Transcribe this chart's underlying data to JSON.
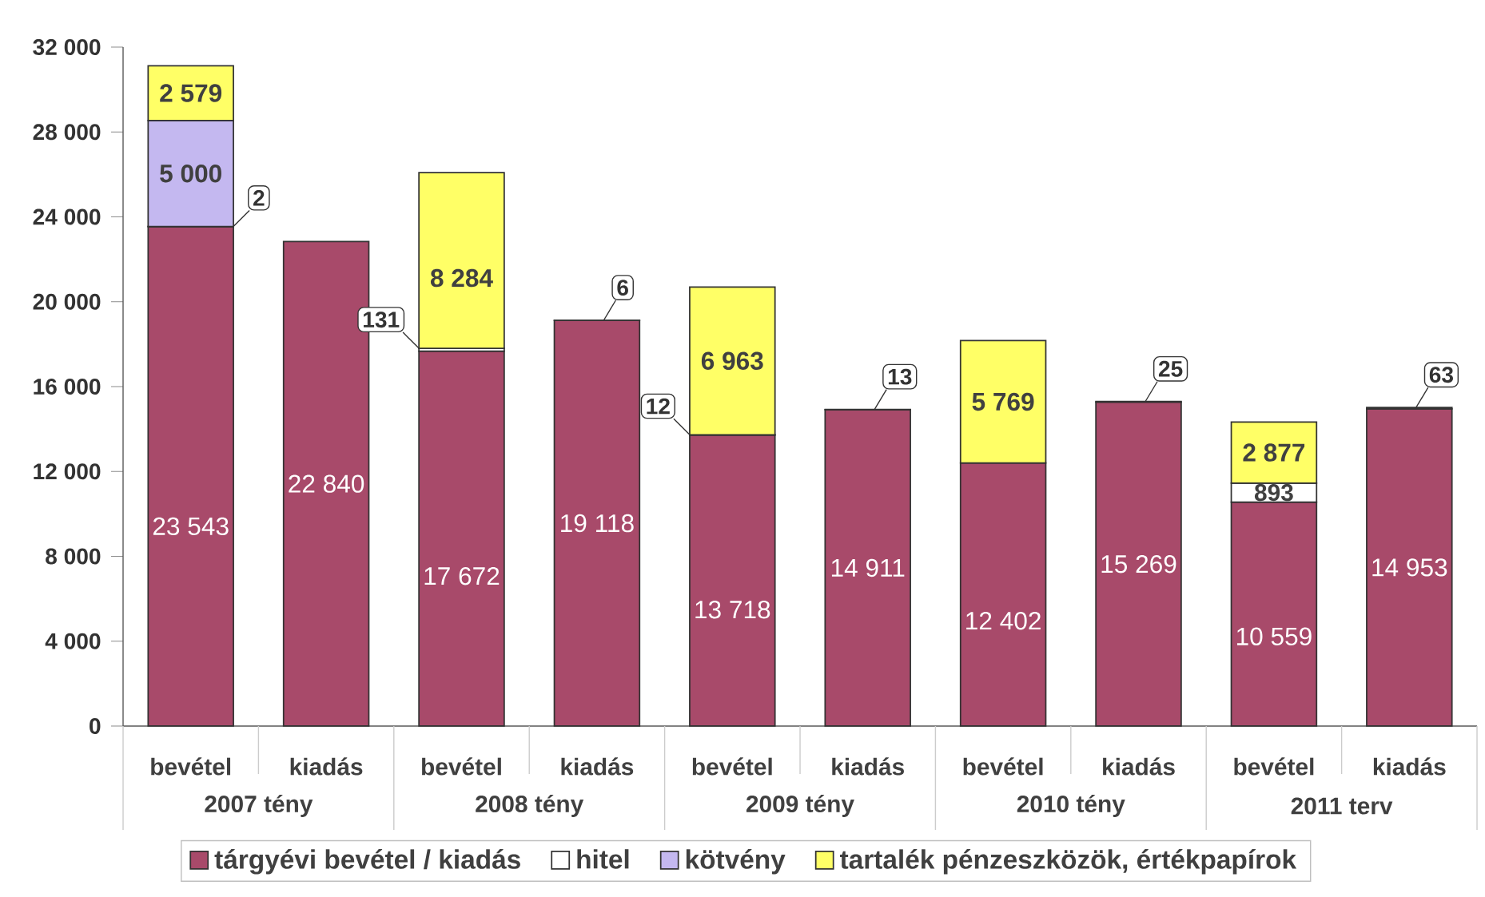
{
  "chart_data": {
    "type": "bar",
    "stacked": true,
    "legend": "bottom",
    "categories": [
      "bevétel",
      "kiadás",
      "bevétel",
      "kiadás",
      "bevétel",
      "kiadás",
      "bevétel",
      "kiadás",
      "bevétel",
      "kiadás"
    ],
    "annotations": [
      "2007 tény",
      "2008 tény",
      "2009 tény",
      "2010 tény",
      "2011 terv"
    ],
    "ylim": [
      0,
      32000
    ],
    "yticks": [
      0,
      {
        "value": 4000,
        "label": "4 000"
      },
      {
        "value": 8000,
        "label": "8 000"
      },
      {
        "value": 12000,
        "label": "12 000"
      },
      {
        "value": 16000,
        "label": "16 000"
      },
      {
        "value": 20000,
        "label": "20 000"
      },
      {
        "value": 24000,
        "label": "24 000"
      },
      {
        "value": 28000,
        "label": "28 000"
      },
      {
        "value": 32000,
        "label": "32 000"
      }
    ],
    "series": [
      {
        "name": "tárgyévi bevétel / kiadás",
        "color": "#a84a6a",
        "values": [
          23543,
          22840,
          17672,
          19118,
          13718,
          14911,
          12402,
          15269,
          10559,
          14953
        ],
        "value_labels": [
          "23 543",
          "22 840",
          "17 672",
          "19 118",
          "13 718",
          "14 911",
          "12 402",
          "15 269",
          "10 559",
          "14 953"
        ]
      },
      {
        "name": "hitel",
        "color": "#ffffff",
        "values": [
          2,
          null,
          131,
          6,
          12,
          13,
          null,
          25,
          893,
          63
        ],
        "value_labels": [
          "2",
          null,
          "131",
          "6",
          "12",
          "13",
          null,
          "25",
          "893",
          "63"
        ]
      },
      {
        "name": "kötvény",
        "color": "#c4b8f0",
        "values": [
          5000,
          null,
          null,
          null,
          null,
          null,
          null,
          null,
          null,
          null
        ],
        "value_labels": [
          "5 000",
          null,
          null,
          null,
          null,
          null,
          null,
          null,
          null,
          null
        ]
      },
      {
        "name": "tartalék pénzeszközök, értékpapírok",
        "color": "#ffff66",
        "values": [
          2579,
          null,
          8284,
          null,
          6963,
          null,
          5769,
          null,
          2877,
          null
        ],
        "value_labels": [
          "2 579",
          null,
          "8 284",
          null,
          "6 963",
          null,
          "5 769",
          null,
          "2 877",
          null
        ]
      }
    ]
  }
}
